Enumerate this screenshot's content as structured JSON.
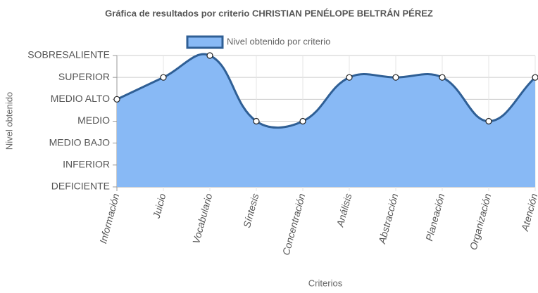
{
  "chart_data": {
    "type": "area",
    "title": "Gráfica de resultados por criterio CHRISTIAN PENÉLOPE BELTRÁN PÉREZ",
    "x_label": "Criterios",
    "y_label": "Nivel obtenido",
    "categories": [
      "Información",
      "Juicio",
      "Vocabulario",
      "Síntesis",
      "Concentración",
      "Análisis",
      "Abstracción",
      "Planeación",
      "Organización",
      "Atención"
    ],
    "series": [
      {
        "name": "Nivel obtenido por criterio",
        "color": "#2f5f95",
        "fill": "#88b9f5",
        "values": [
          4,
          5,
          6,
          3,
          3,
          5,
          5,
          5,
          3,
          5
        ]
      }
    ],
    "ylim": [
      0,
      6
    ],
    "yticks": [
      {
        "value": 0,
        "label": "DEFICIENTE"
      },
      {
        "value": 1,
        "label": "INFERIOR"
      },
      {
        "value": 2,
        "label": "MEDIO BAJO"
      },
      {
        "value": 3,
        "label": "MEDIO"
      },
      {
        "value": 4,
        "label": "MEDIO ALTO"
      },
      {
        "value": 5,
        "label": "SUPERIOR"
      },
      {
        "value": 6,
        "label": "SOBRESALIENTE"
      }
    ],
    "grid": true,
    "legend": "top"
  }
}
